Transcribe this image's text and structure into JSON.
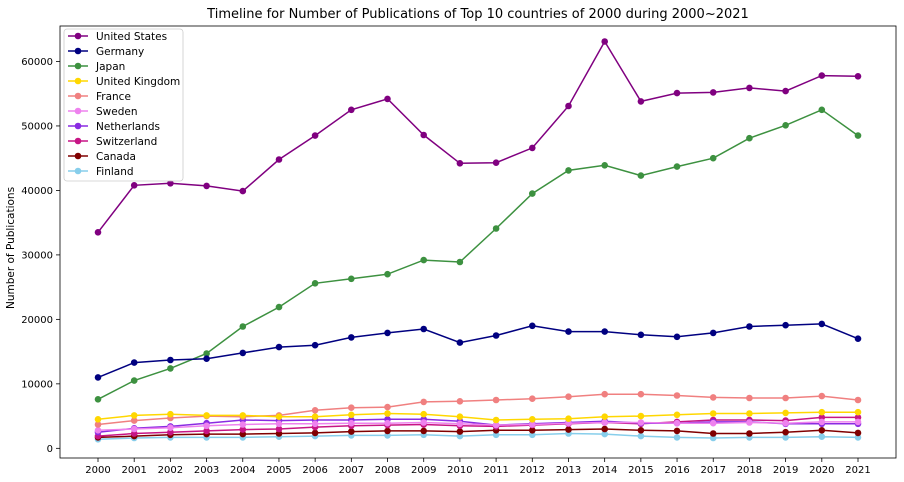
{
  "chart_data": {
    "type": "line",
    "title": "Timeline for Number of Publications of Top 10 countries of 2000 during 2000~2021",
    "xlabel": "",
    "ylabel": "Number of Publications",
    "ylim": [
      -1500,
      65500
    ],
    "yticks": [
      0,
      10000,
      20000,
      30000,
      40000,
      50000,
      60000
    ],
    "x": [
      "2000",
      "2001",
      "2002",
      "2003",
      "2004",
      "2005",
      "2006",
      "2007",
      "2008",
      "2009",
      "2010",
      "2011",
      "2012",
      "2013",
      "2014",
      "2015",
      "2016",
      "2017",
      "2018",
      "2019",
      "2020",
      "2021"
    ],
    "grid": false,
    "legend_position": "top-left",
    "series": [
      {
        "name": "United States",
        "color": "#800080",
        "values": [
          33500,
          40800,
          41100,
          40700,
          39900,
          44800,
          48500,
          52500,
          54200,
          48600,
          44200,
          44300,
          46600,
          53100,
          63100,
          53800,
          55100,
          55200,
          55900,
          55400,
          57800,
          57700
        ]
      },
      {
        "name": "Germany",
        "color": "#000080",
        "values": [
          11000,
          13300,
          13700,
          13900,
          14800,
          15700,
          16000,
          17200,
          17900,
          18500,
          16400,
          17500,
          19000,
          18100,
          18100,
          17600,
          17300,
          17900,
          18900,
          19100,
          19300,
          17000
        ]
      },
      {
        "name": "Japan",
        "color": "#3d9140",
        "values": [
          7600,
          10500,
          12400,
          14700,
          18900,
          21900,
          25600,
          26300,
          27000,
          29200,
          28900,
          34100,
          39500,
          43100,
          43900,
          42300,
          43700,
          45000,
          48100,
          50100,
          52500,
          48500
        ]
      },
      {
        "name": "United Kingdom",
        "color": "#ffd700",
        "values": [
          4500,
          5100,
          5300,
          5100,
          5100,
          4900,
          4900,
          5200,
          5400,
          5300,
          4900,
          4400,
          4500,
          4600,
          4900,
          5000,
          5200,
          5400,
          5400,
          5500,
          5600,
          5600
        ]
      },
      {
        "name": "France",
        "color": "#f08080",
        "values": [
          3700,
          4300,
          4700,
          5000,
          4900,
          5100,
          5900,
          6300,
          6400,
          7200,
          7300,
          7500,
          7700,
          8000,
          8400,
          8400,
          8200,
          7900,
          7800,
          7800,
          8100,
          7500
        ]
      },
      {
        "name": "Sweden",
        "color": "#ee82ee",
        "values": [
          2800,
          3000,
          3200,
          3500,
          3700,
          3800,
          3800,
          3900,
          3900,
          4000,
          3800,
          3600,
          3700,
          3900,
          4000,
          4000,
          3900,
          3900,
          4000,
          3900,
          4100,
          4100
        ]
      },
      {
        "name": "Netherlands",
        "color": "#8a2be2",
        "values": [
          2500,
          3100,
          3400,
          3900,
          4400,
          4300,
          4400,
          4400,
          4500,
          4500,
          4200,
          3600,
          3800,
          4000,
          4200,
          3900,
          3900,
          4100,
          4100,
          3800,
          3800,
          3800
        ]
      },
      {
        "name": "Switzerland",
        "color": "#c71585",
        "values": [
          1900,
          2300,
          2500,
          2700,
          2900,
          3000,
          3300,
          3500,
          3600,
          3700,
          3500,
          3400,
          3600,
          3800,
          4000,
          3800,
          4100,
          4400,
          4400,
          4300,
          4800,
          4800
        ]
      },
      {
        "name": "Canada",
        "color": "#800000",
        "values": [
          1700,
          1900,
          2100,
          2200,
          2200,
          2300,
          2400,
          2600,
          2700,
          2700,
          2600,
          2800,
          2800,
          2900,
          3000,
          2800,
          2700,
          2300,
          2300,
          2500,
          2800,
          2400
        ]
      },
      {
        "name": "Finland",
        "color": "#87ceeb",
        "values": [
          1400,
          1600,
          1700,
          1700,
          1700,
          1800,
          1900,
          2000,
          2000,
          2100,
          1900,
          2100,
          2100,
          2300,
          2200,
          1900,
          1700,
          1600,
          1700,
          1700,
          1800,
          1700
        ]
      }
    ]
  }
}
